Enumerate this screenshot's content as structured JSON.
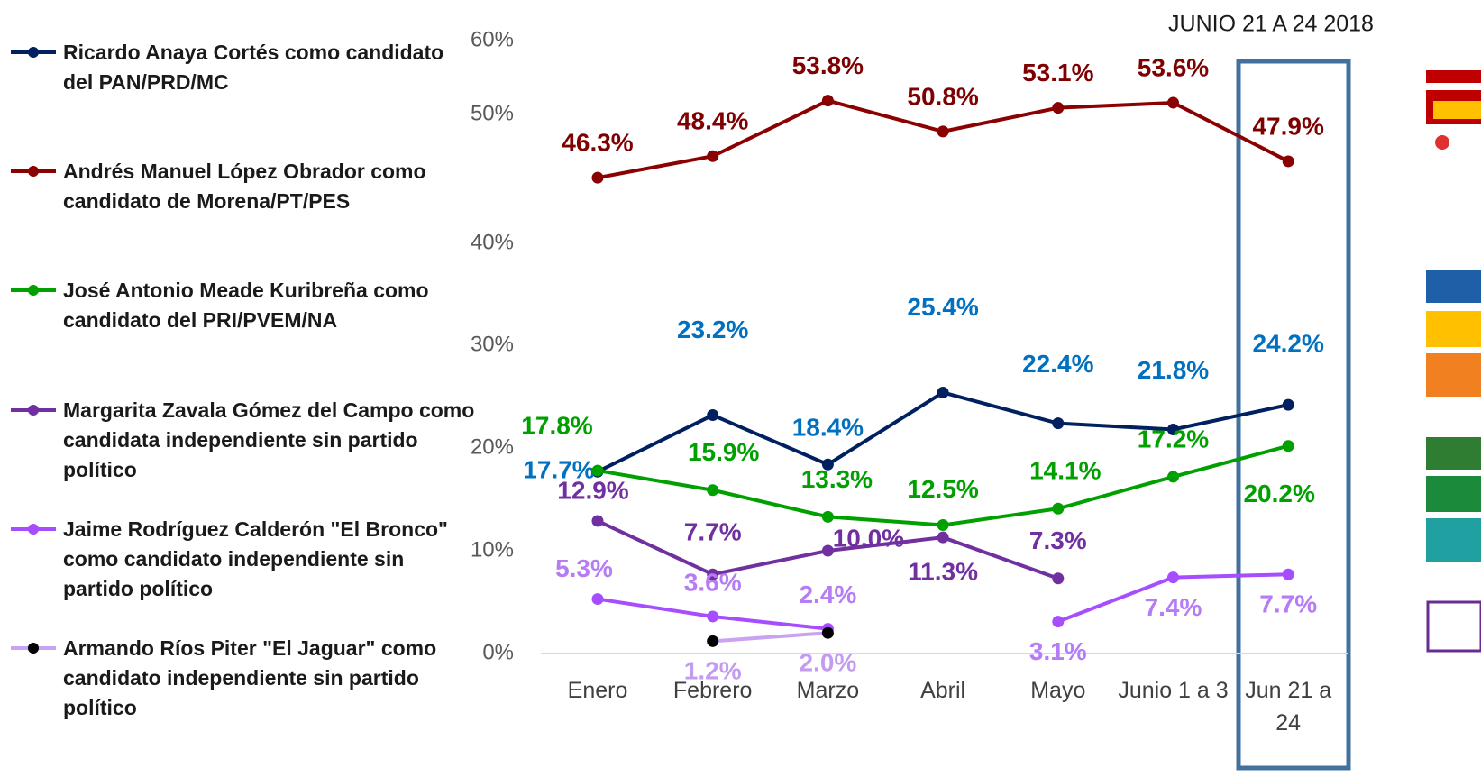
{
  "chart_data": {
    "type": "line",
    "subtitle": "JUNIO 21 A 24 2018",
    "categories": [
      "Enero",
      "Febrero",
      "Marzo",
      "Abril",
      "Mayo",
      "Junio 1 a 3",
      "Jun 21 a 24"
    ],
    "ylim": [
      0,
      60
    ],
    "yticks": [
      {
        "value": 0,
        "label": "0%"
      },
      {
        "value": 10,
        "label": "10%"
      },
      {
        "value": 20,
        "label": "20%"
      },
      {
        "value": 30,
        "label": "30%"
      },
      {
        "value": 40,
        "label": "40%"
      },
      {
        "value": 50,
        "label": "50%"
      },
      {
        "value": 60,
        "label": "60%"
      }
    ],
    "grid": false,
    "legend": "left",
    "series": [
      {
        "name": "Ricardo Anaya Cortés como candidato del PAN/PRD/MC",
        "color": "#002060",
        "label_color": "#0070c0",
        "values": [
          17.7,
          23.2,
          18.4,
          25.4,
          22.4,
          21.8,
          24.2
        ],
        "value_labels": [
          "17.7%",
          "23.2%",
          "18.4%",
          "25.4%",
          "22.4%",
          "21.8%",
          "24.2%"
        ]
      },
      {
        "name": "Andrés Manuel López Obrador como candidato de Morena/PT/PES",
        "color": "#8b0000",
        "label_color": "#7f0000",
        "values": [
          46.3,
          48.4,
          53.8,
          50.8,
          53.1,
          53.6,
          47.9
        ],
        "value_labels": [
          "46.3%",
          "48.4%",
          "53.8%",
          "50.8%",
          "53.1%",
          "53.6%",
          "47.9%"
        ]
      },
      {
        "name": "José Antonio Meade Kuribreña como candidato del PRI/PVEM/NA",
        "color": "#00a000",
        "label_color": "#00a000",
        "values": [
          17.8,
          15.9,
          13.3,
          12.5,
          14.1,
          17.2,
          20.2
        ],
        "value_labels": [
          "17.8%",
          "15.9%",
          "13.3%",
          "12.5%",
          "14.1%",
          "17.2%",
          "20.2%"
        ]
      },
      {
        "name": "Margarita Zavala Gómez del Campo como candidata independiente sin partido político",
        "color": "#7030a0",
        "label_color": "#7030a0",
        "values": [
          12.9,
          7.7,
          10.0,
          11.3,
          7.3,
          null,
          null
        ],
        "value_labels": [
          "12.9%",
          "7.7%",
          "10.0%",
          "11.3%",
          "7.3%",
          null,
          null
        ]
      },
      {
        "name": "Jaime Rodríguez Calderón \"El Bronco\" como candidato independiente sin partido político",
        "color": "#a64dff",
        "label_color": "#b57cf5",
        "values": [
          5.3,
          3.6,
          2.4,
          null,
          3.1,
          7.4,
          7.7
        ],
        "value_labels": [
          "5.3%",
          "3.6%",
          "2.4%",
          null,
          "3.1%",
          "7.4%",
          "7.7%"
        ]
      },
      {
        "name": "Armando Ríos Piter \"El Jaguar\" como candidato independiente sin partido político",
        "color": "#c9a2f2",
        "marker_color": "#000000",
        "label_color": "#c39bf0",
        "values": [
          null,
          1.2,
          2.0,
          null,
          null,
          null,
          null
        ],
        "value_labels": [
          null,
          "1.2%",
          "2.0%",
          null,
          null,
          null,
          null
        ]
      }
    ]
  }
}
